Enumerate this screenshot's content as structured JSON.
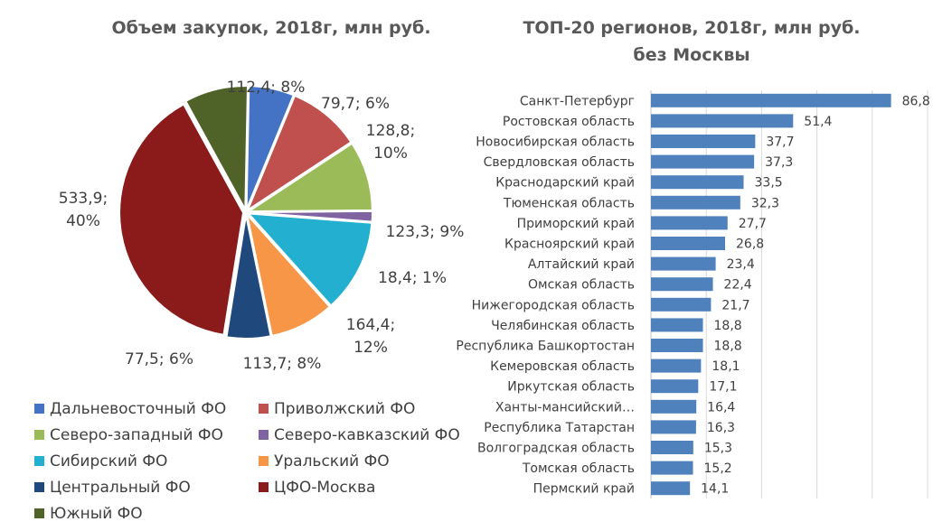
{
  "chart_data": [
    {
      "type": "pie",
      "title": "Объем закупок, 2018г, млн руб.",
      "slices": [
        {
          "name": "Дальневосточный ФО",
          "value": 79.7,
          "label": "79,7; 6%",
          "color": "#4472C4"
        },
        {
          "name": "Приволжский ФО",
          "value": 128.8,
          "label": "128,8; 10%",
          "color": "#C0504D"
        },
        {
          "name": "Северо-западный ФО",
          "value": 123.3,
          "label": "123,3; 9%",
          "color": "#9BBB59"
        },
        {
          "name": "Северо-кавказский ФО",
          "value": 18.4,
          "label": "18,4; 1%",
          "color": "#8064A2"
        },
        {
          "name": "Сибирский ФО",
          "value": 164.4,
          "label": "164,4; 12%",
          "color": "#23B0D0"
        },
        {
          "name": "Уральский ФО",
          "value": 113.7,
          "label": "113,7; 8%",
          "color": "#F79646"
        },
        {
          "name": "Центральный ФО",
          "value": 77.5,
          "label": "77,5; 6%",
          "color": "#1F497D"
        },
        {
          "name": "ЦФО-Москва",
          "value": 533.9,
          "label": "533,9; 40%",
          "color": "#8B1A1A"
        },
        {
          "name": "Южный ФО",
          "value": 112.4,
          "label": "112,4; 8%",
          "color": "#4F6228"
        }
      ],
      "legend_position": "bottom"
    },
    {
      "type": "bar",
      "orientation": "horizontal",
      "title": "ТОП-20 регионов, 2018г, млн руб. без Москвы",
      "categories": [
        "Санкт-Петербург",
        "Ростовская область",
        "Новосибирская область",
        "Свердловская область",
        "Краснодарский край",
        "Тюменская область",
        "Приморский край",
        "Красноярский край",
        "Алтайский край",
        "Омская область",
        "Нижегородская область",
        "Челябинская область",
        "Республика Башкортостан",
        "Кемеровская область",
        "Иркутская область",
        "Ханты-мансийский…",
        "Республика Татарстан",
        "Волгоградская область",
        "Томская область",
        "Пермский край"
      ],
      "values": [
        86.8,
        51.4,
        37.7,
        37.3,
        33.5,
        32.3,
        27.7,
        26.8,
        23.4,
        22.4,
        21.7,
        18.8,
        18.8,
        18.1,
        17.1,
        16.4,
        16.3,
        15.3,
        15.2,
        14.1
      ],
      "value_labels": [
        "86,8",
        "51,4",
        "37,7",
        "37,3",
        "33,5",
        "32,3",
        "27,7",
        "26,8",
        "23,4",
        "22,4",
        "21,7",
        "18,8",
        "18,8",
        "18,1",
        "17,1",
        "16,4",
        "16,3",
        "15,3",
        "15,2",
        "14,1"
      ],
      "xlim": [
        0,
        100
      ],
      "grid": true,
      "color": "#4F81BD"
    }
  ]
}
